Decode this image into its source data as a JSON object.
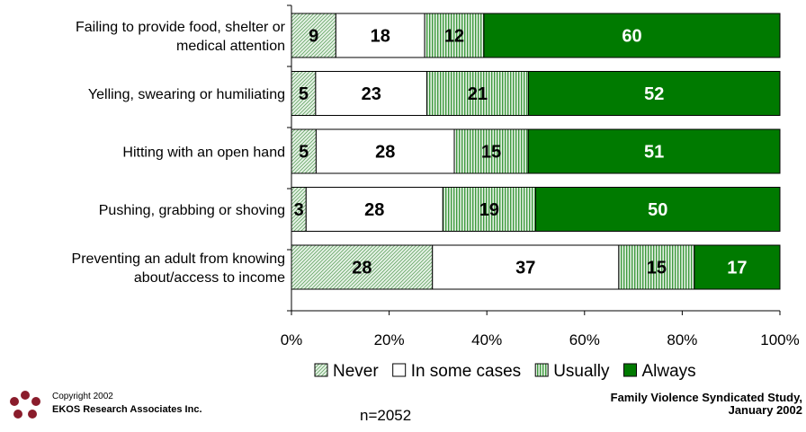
{
  "chart_data": {
    "type": "bar",
    "stacked": true,
    "orientation": "horizontal",
    "categories": [
      [
        "Failing to provide food, shelter or",
        "medical attention"
      ],
      [
        "Yelling, swearing or humiliating"
      ],
      [
        "Hitting with an open hand"
      ],
      [
        "Pushing, grabbing or shoving"
      ],
      [
        "Preventing an adult from knowing",
        "about/access to income"
      ]
    ],
    "series": [
      {
        "name": "Never",
        "values": [
          9,
          5,
          5,
          3,
          28
        ],
        "color": "#c8e3c8",
        "pattern": "diagonal-hatch"
      },
      {
        "name": "In some cases",
        "values": [
          18,
          23,
          28,
          28,
          37
        ],
        "color": "#ffffff",
        "pattern": "solid"
      },
      {
        "name": "Usually",
        "values": [
          12,
          21,
          15,
          19,
          15
        ],
        "color": "#7fbf7f",
        "pattern": "vertical-lines"
      },
      {
        "name": "Always",
        "values": [
          60,
          52,
          51,
          50,
          17
        ],
        "color": "#007a00",
        "pattern": "solid"
      }
    ],
    "xlim": [
      0,
      100
    ],
    "xticks": [
      "0%",
      "20%",
      "40%",
      "60%",
      "80%",
      "100%"
    ],
    "legend_position": "bottom",
    "grid": false
  },
  "footer": {
    "copyright": "Copyright 2002",
    "company": "EKOS Research Associates Inc.",
    "sample_size": "n=2052",
    "source_line1": "Family Violence Syndicated Study,",
    "source_line2": "January 2002"
  },
  "logo_icon": "ekos-logo-icon"
}
